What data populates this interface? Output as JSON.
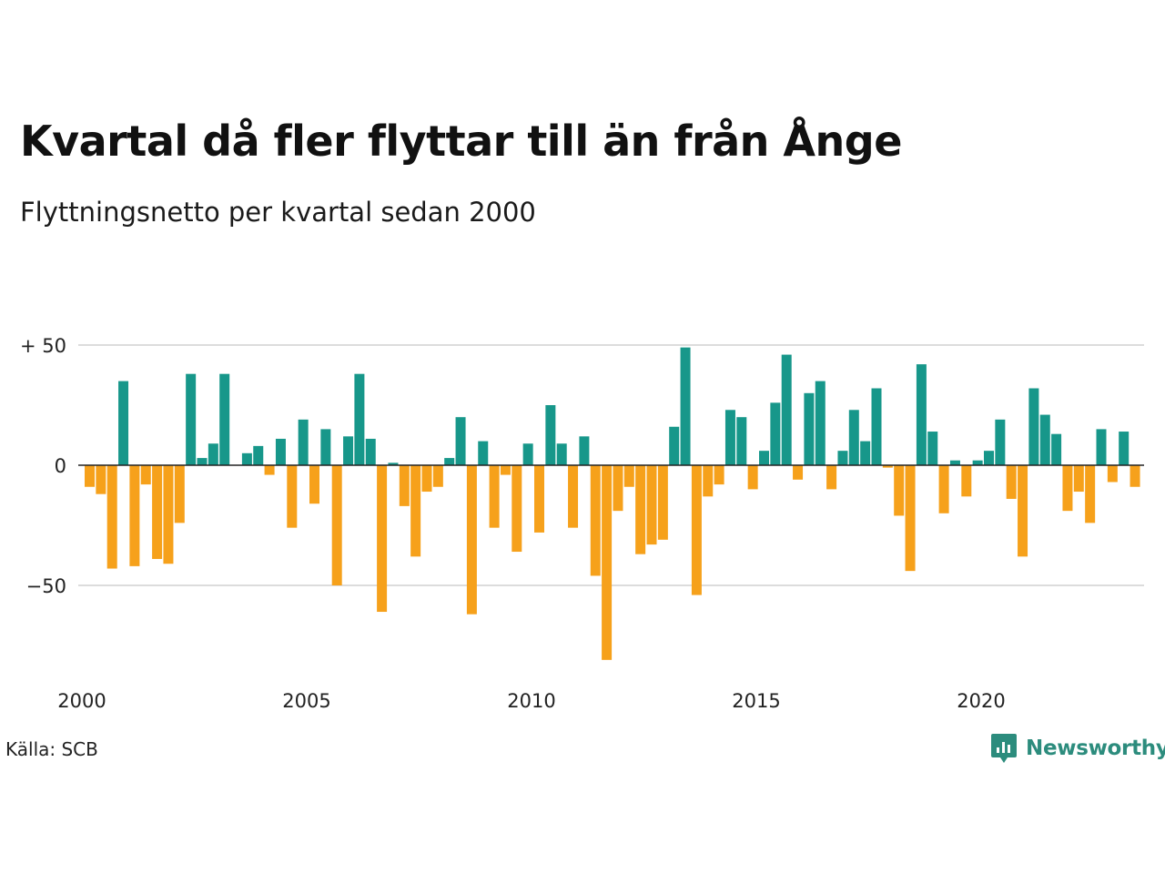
{
  "colors": {
    "positive": "#17978a",
    "negative": "#f6a11b",
    "grid": "#dcdcdc",
    "zero": "#222222",
    "brand": "#2c8c7d"
  },
  "brand": {
    "name": "Newsworthy"
  },
  "source": "Källa: SCB",
  "chart_data": {
    "type": "bar",
    "title": "Kvartal då fler flyttar till än från Ånge",
    "subtitle": "Flyttningsnetto per kvartal sedan 2000",
    "xlabel": "",
    "ylabel": "",
    "ylim": [
      -85,
      52
    ],
    "yticks": [
      {
        "value": 50,
        "label": "+ 50"
      },
      {
        "value": 0,
        "label": "0"
      },
      {
        "value": -50,
        "label": "−50"
      }
    ],
    "xticks": [
      {
        "year": 2000,
        "label": "2000"
      },
      {
        "year": 2005,
        "label": "2005"
      },
      {
        "year": 2010,
        "label": "2010"
      },
      {
        "year": 2015,
        "label": "2015"
      },
      {
        "year": 2020,
        "label": "2020"
      }
    ],
    "start": "2000-Q1",
    "values": [
      -9,
      -12,
      -43,
      35,
      -42,
      -8,
      -39,
      -41,
      -24,
      38,
      3,
      9,
      38,
      0,
      5,
      8,
      -4,
      11,
      -26,
      19,
      -16,
      15,
      -50,
      12,
      38,
      11,
      -61,
      1,
      -17,
      -38,
      -11,
      -9,
      3,
      20,
      -62,
      10,
      -26,
      -4,
      -36,
      9,
      -28,
      25,
      9,
      -26,
      12,
      -46,
      -81,
      -19,
      -9,
      -37,
      -33,
      -31,
      16,
      49,
      -54,
      -13,
      -8,
      23,
      20,
      -10,
      6,
      26,
      46,
      -6,
      30,
      35,
      -10,
      6,
      23,
      10,
      32,
      -1,
      -21,
      -44,
      42,
      14,
      -20,
      2,
      -13,
      2,
      6,
      19,
      -14,
      -38,
      32,
      21,
      13,
      -19,
      -11,
      -24,
      15,
      -7,
      14,
      -9
    ]
  }
}
